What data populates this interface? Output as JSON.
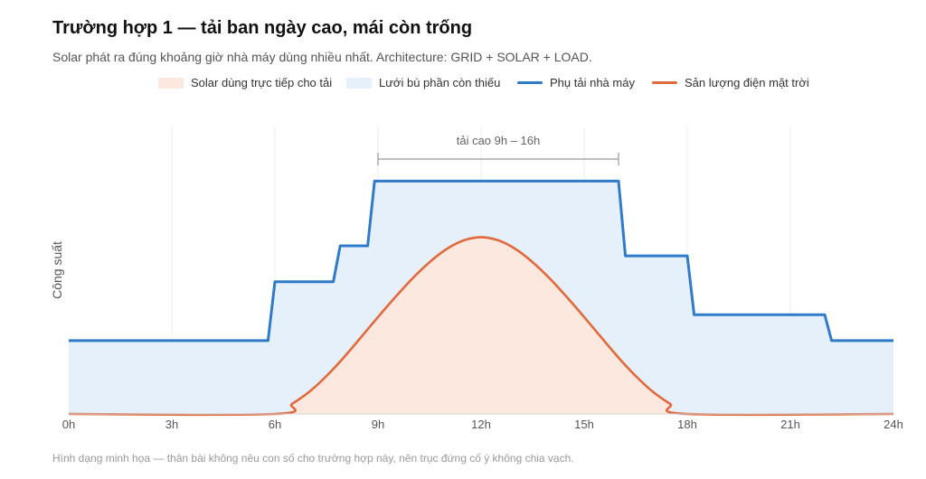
{
  "header": {
    "title": "Trường hợp 1 — tải ban ngày cao, mái còn trống",
    "subtitle": "Solar phát ra đúng khoảng giờ nhà máy dùng nhiều nhất. Architecture: GRID + SOLAR + LOAD."
  },
  "legend": [
    {
      "label": "Solar dùng trực tiếp cho tải",
      "kind": "box",
      "color": "#fde8e0"
    },
    {
      "label": "Lưới bù phần còn thiếu",
      "kind": "box",
      "color": "#e6f0fb"
    },
    {
      "label": "Phụ tải nhà máy",
      "kind": "line",
      "color": "#2f7ac9"
    },
    {
      "label": "Sản lượng điện mặt trời",
      "kind": "line",
      "color": "#e06a3c"
    }
  ],
  "footnote": "Hình dạng minh họa — thân bài không nêu con số cho trường hợp này, nên trục đứng cố ý không chia vạch.",
  "chart_data": {
    "type": "area",
    "xlabel": "",
    "ylabel": "Công suất",
    "xlim": [
      0,
      24
    ],
    "ylim": [
      0,
      1
    ],
    "x_ticks": [
      "0h",
      "3h",
      "6h",
      "9h",
      "12h",
      "15h",
      "18h",
      "21h",
      "24h"
    ],
    "grid": "vertical",
    "legend_position": "top-center",
    "series": [
      {
        "name": "Phụ tải nhà máy",
        "color": "#2f7ac9",
        "x": [
          0,
          5.8,
          6,
          7.7,
          7.9,
          8.7,
          8.9,
          16,
          16.2,
          18,
          18.2,
          22,
          22.2,
          24
        ],
        "y": [
          0.255,
          0.255,
          0.46,
          0.46,
          0.585,
          0.585,
          0.81,
          0.81,
          0.55,
          0.55,
          0.345,
          0.345,
          0.255,
          0.255
        ]
      },
      {
        "name": "Sản lượng điện mặt trời",
        "color": "#e06a3c",
        "x": [
          0,
          6,
          6.5,
          7,
          7.5,
          8,
          8.5,
          9,
          9.5,
          10,
          10.5,
          11,
          11.5,
          12,
          12.5,
          13,
          13.5,
          14,
          14.5,
          15,
          15.5,
          16,
          16.5,
          17,
          17.5,
          18,
          24
        ],
        "y": [
          0,
          0,
          0.035,
          0.077,
          0.132,
          0.196,
          0.266,
          0.337,
          0.406,
          0.471,
          0.528,
          0.574,
          0.604,
          0.615,
          0.604,
          0.574,
          0.528,
          0.471,
          0.406,
          0.337,
          0.266,
          0.196,
          0.132,
          0.077,
          0.035,
          0,
          0
        ]
      }
    ],
    "fills": [
      {
        "name": "Lưới bù phần còn thiếu",
        "under": "Phụ tải nhà máy",
        "color": "#e6f0fb"
      },
      {
        "name": "Solar dùng trực tiếp cho tải",
        "under": "Sản lượng điện mặt trời",
        "color": "#fde8e0"
      }
    ],
    "annotation": {
      "text": "tải cao 9h – 16h",
      "x_start": 9,
      "x_end": 16
    }
  }
}
